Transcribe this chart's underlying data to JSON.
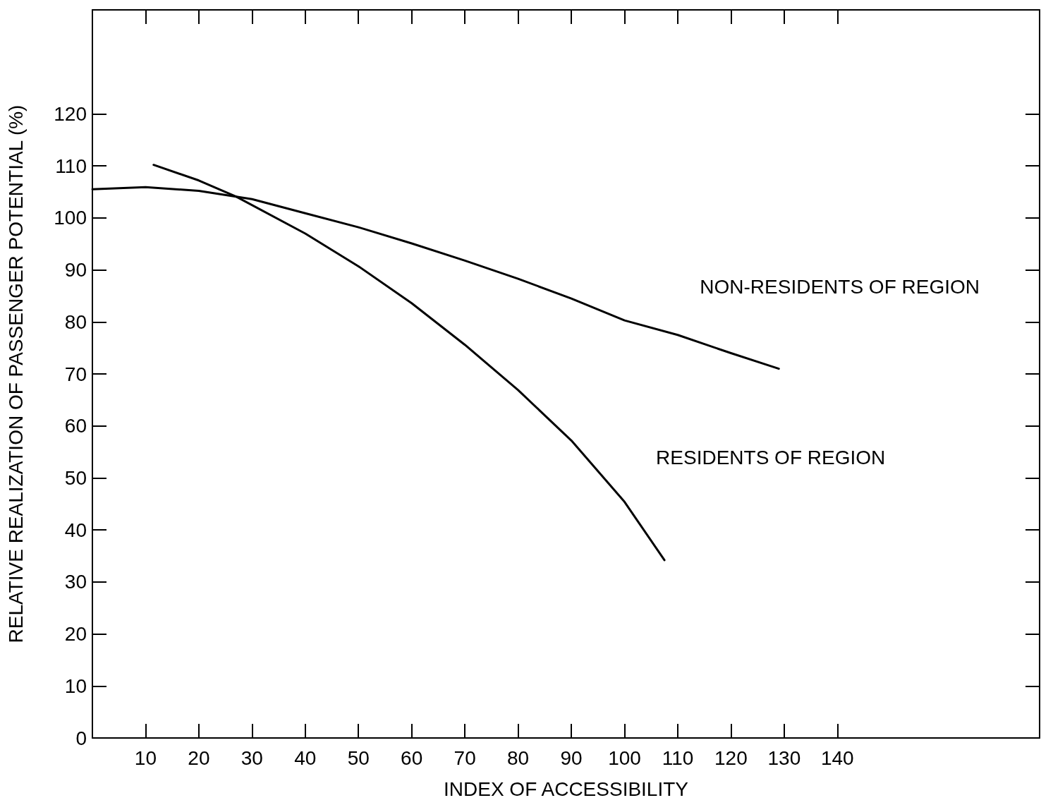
{
  "chart_data": {
    "type": "line",
    "xlabel": "INDEX OF ACCESSIBILITY",
    "ylabel": "RELATIVE REALIZATION OF PASSENGER POTENTIAL (%)",
    "xlim": [
      0,
      178
    ],
    "ylim": [
      0,
      140
    ],
    "xticks": [
      10,
      20,
      30,
      40,
      50,
      60,
      70,
      80,
      90,
      100,
      110,
      120,
      130,
      140
    ],
    "yticks": [
      0,
      10,
      20,
      30,
      40,
      50,
      60,
      70,
      80,
      90,
      100,
      110,
      120
    ],
    "grid": false,
    "legend": false,
    "marker": "none",
    "line_style": "solid",
    "series": [
      {
        "name": "NON-RESIDENTS OF REGION",
        "color": "#000000",
        "x": [
          0,
          10,
          20,
          30,
          40,
          50,
          60,
          70,
          80,
          90,
          100,
          110,
          120,
          129
        ],
        "values": [
          105.5,
          105.9,
          105.2,
          103.6,
          100.9,
          98.2,
          95.1,
          91.8,
          88.3,
          84.5,
          80.3,
          77.5,
          74,
          71
        ]
      },
      {
        "name": "RESIDENTS OF REGION",
        "color": "#000000",
        "x": [
          11.5,
          20,
          27,
          40,
          50,
          60,
          70,
          80,
          90,
          100,
          107.5
        ],
        "values": [
          110.2,
          107.2,
          104.1,
          97,
          90.7,
          83.6,
          75.6,
          66.9,
          57.2,
          45.4,
          34.2
        ]
      }
    ]
  }
}
